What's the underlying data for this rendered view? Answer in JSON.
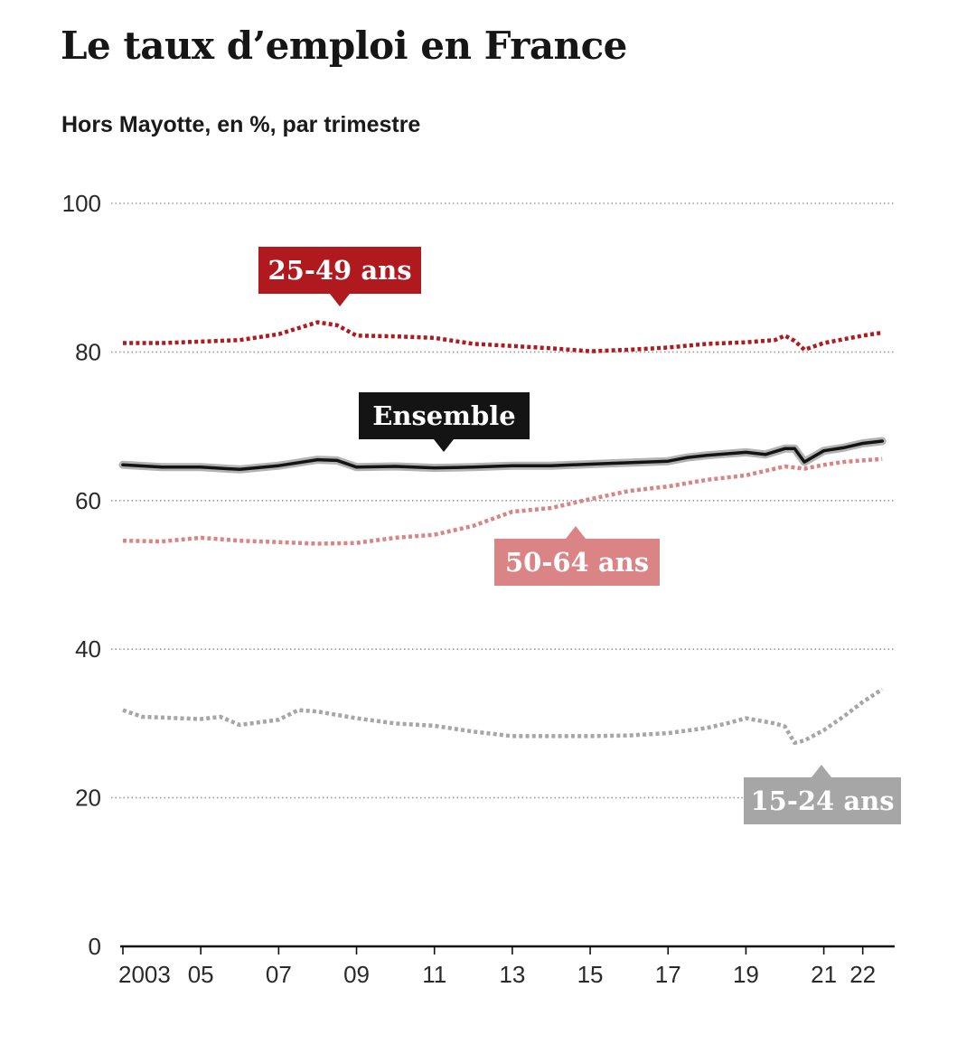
{
  "chart_data": {
    "type": "line",
    "title": "Le taux d’emploi en France",
    "subtitle": "Hors Mayotte, en %, par trimestre",
    "ylim": [
      0,
      100
    ],
    "yticks": [
      "0",
      "20",
      "40",
      "60",
      "80",
      "100"
    ],
    "xlim": [
      2003,
      2022.75
    ],
    "xticks": [
      {
        "year": 2003,
        "label": "2003"
      },
      {
        "year": 2005,
        "label": "05"
      },
      {
        "year": 2007,
        "label": "07"
      },
      {
        "year": 2009,
        "label": "09"
      },
      {
        "year": 2011,
        "label": "11"
      },
      {
        "year": 2013,
        "label": "13"
      },
      {
        "year": 2015,
        "label": "15"
      },
      {
        "year": 2017,
        "label": "17"
      },
      {
        "year": 2019,
        "label": "19"
      },
      {
        "year": 2021,
        "label": "21"
      },
      {
        "year": 2022,
        "label": "22"
      }
    ],
    "grid": true,
    "series": [
      {
        "name": "25-49 ans",
        "color": "#b0191e",
        "style": "dotted",
        "x": [
          2003,
          2004,
          2005,
          2006,
          2007,
          2008,
          2008.5,
          2009,
          2010,
          2011,
          2012,
          2013,
          2014,
          2015,
          2016,
          2017,
          2018,
          2019,
          2019.75,
          2020,
          2020.25,
          2020.5,
          2021,
          2021.5,
          2022,
          2022.5
        ],
        "values": [
          81.2,
          81.2,
          81.4,
          81.6,
          82.4,
          84.0,
          83.6,
          82.2,
          82.1,
          81.9,
          81.1,
          80.8,
          80.5,
          80.1,
          80.3,
          80.6,
          81.1,
          81.3,
          81.6,
          82.2,
          81.5,
          80.3,
          81.2,
          81.7,
          82.2,
          82.6
        ]
      },
      {
        "name": "Ensemble",
        "color": "#141414",
        "style": "solid",
        "x": [
          2003,
          2004,
          2005,
          2006,
          2007,
          2008,
          2008.5,
          2009,
          2010,
          2011,
          2012,
          2013,
          2014,
          2015,
          2016,
          2017,
          2017.5,
          2018,
          2019,
          2019.5,
          2020,
          2020.25,
          2020.5,
          2021,
          2021.5,
          2022,
          2022.5
        ],
        "values": [
          64.8,
          64.5,
          64.5,
          64.2,
          64.7,
          65.5,
          65.4,
          64.5,
          64.6,
          64.4,
          64.5,
          64.7,
          64.7,
          64.9,
          65.1,
          65.3,
          65.8,
          66.1,
          66.5,
          66.2,
          67.0,
          67.0,
          65.2,
          66.7,
          67.1,
          67.7,
          68.0
        ]
      },
      {
        "name": "50-64 ans",
        "color": "#da8486",
        "style": "dotted",
        "x": [
          2003,
          2004,
          2005,
          2006,
          2007,
          2008,
          2009,
          2010,
          2011,
          2012,
          2013,
          2014,
          2015,
          2016,
          2017,
          2018,
          2019,
          2020,
          2020.5,
          2021,
          2021.5,
          2022,
          2022.5
        ],
        "values": [
          54.6,
          54.5,
          55.0,
          54.6,
          54.4,
          54.2,
          54.3,
          55.0,
          55.4,
          56.6,
          58.5,
          59.0,
          60.2,
          61.3,
          61.9,
          62.8,
          63.4,
          64.6,
          64.3,
          64.8,
          65.2,
          65.4,
          65.6
        ]
      },
      {
        "name": "15-24 ans",
        "color": "#a6a6a6",
        "style": "dotted",
        "x": [
          2003,
          2003.5,
          2004,
          2005,
          2005.5,
          2006,
          2007,
          2007.5,
          2008,
          2009,
          2010,
          2011,
          2012,
          2013,
          2014,
          2015,
          2016,
          2017,
          2018,
          2018.5,
          2019,
          2019.75,
          2020,
          2020.25,
          2020.5,
          2021,
          2021.5,
          2022,
          2022.5
        ],
        "values": [
          31.8,
          30.9,
          30.8,
          30.6,
          30.9,
          29.8,
          30.5,
          31.8,
          31.6,
          30.7,
          30.0,
          29.7,
          28.9,
          28.3,
          28.3,
          28.3,
          28.4,
          28.7,
          29.4,
          30.0,
          30.7,
          30.0,
          29.6,
          27.4,
          27.7,
          29.1,
          30.9,
          32.9,
          34.6
        ]
      }
    ],
    "labels": [
      {
        "series": "25-49 ans",
        "text": "25-49 ans",
        "bg": "#b0191e",
        "pointer": "down"
      },
      {
        "series": "Ensemble",
        "text": "Ensemble",
        "bg": "#141414",
        "pointer": "down"
      },
      {
        "series": "50-64 ans",
        "text": "50-64 ans",
        "bg": "#da8486",
        "pointer": "up"
      },
      {
        "series": "15-24 ans",
        "text": "15-24 ans",
        "bg": "#a6a6a6",
        "pointer": "up"
      }
    ]
  }
}
